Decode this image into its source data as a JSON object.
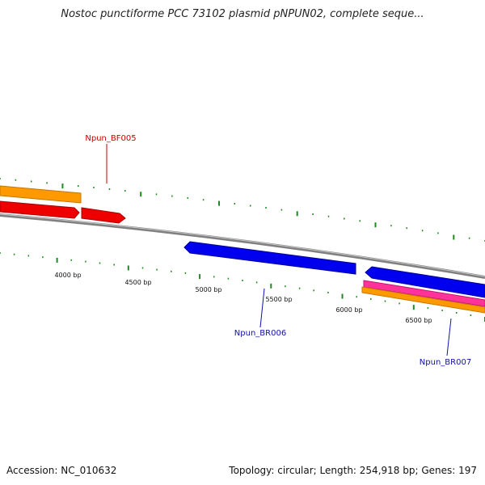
{
  "map": {
    "title": "Nostoc punctiforme PCC 73102 plasmid pNPUN02, complete seque...",
    "accession": "Accession: NC_010632",
    "topology": "Topology: circular; Length: 254,918 bp; Genes: 197"
  },
  "scale": {
    "tick_labels": [
      "4000 bp",
      "4500 bp",
      "5000 bp",
      "5500 bp",
      "6000 bp",
      "6500 bp"
    ]
  },
  "genes": [
    {
      "label": "Npun_BF005",
      "color": "#cc0000"
    },
    {
      "label": "Npun_BR006",
      "color": "#1010aa"
    },
    {
      "label": "Npun_BR007",
      "color": "#1010aa"
    }
  ],
  "colors": {
    "backbone": "#808080",
    "tick": "#1e8a1e",
    "cds_forward": "#ee0000",
    "cds_reverse": "#0000ee",
    "gene_orange": "#ff9900",
    "gene_pink": "#ff3399"
  }
}
